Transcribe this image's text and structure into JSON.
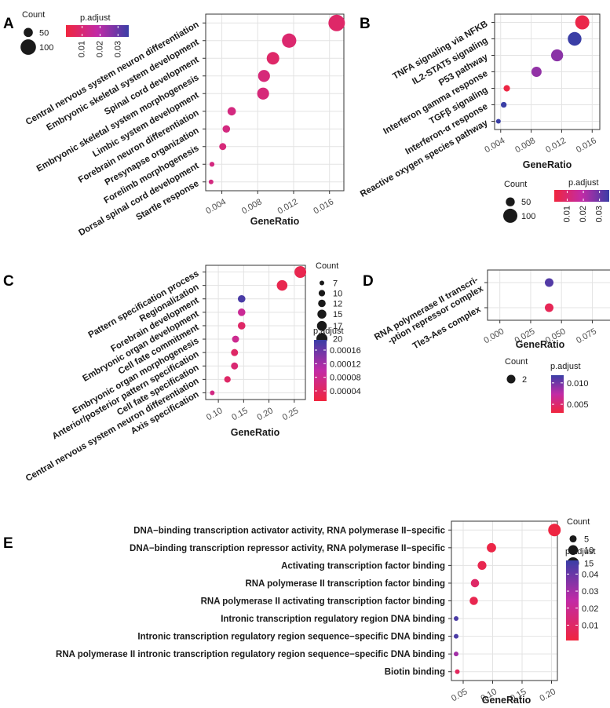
{
  "colors": {
    "low": "#f0263e",
    "mid": "#c22ba6",
    "high": "#3a3ea6",
    "dot_red": "#ee2b3e",
    "grid": "#e3e3e3",
    "frame": "#333333"
  },
  "chart_data": [
    {
      "panel": "A",
      "type": "scatter",
      "xlabel": "GeneRatio",
      "categories": [
        "Central nervous system neuron differentiation",
        "Embryonic skeletal system development",
        "Spinal cord development",
        "Embryonic skeletal system morphogenesis",
        "Limbic system development",
        "Forebrain neuron differentiation",
        "Presynapse organization",
        "Forelimb morphogenesis",
        "Dorsal spinal cord development",
        "Startle response"
      ],
      "x": [
        0.0168,
        0.0115,
        0.0097,
        0.0087,
        0.0086,
        0.0051,
        0.0045,
        0.0041,
        0.0029,
        0.0028
      ],
      "count": [
        110,
        90,
        75,
        70,
        70,
        45,
        40,
        37,
        26,
        25
      ],
      "p_adjust": [
        0.008,
        0.009,
        0.008,
        0.011,
        0.011,
        0.012,
        0.012,
        0.011,
        0.012,
        0.012
      ],
      "xlim": [
        0.0022,
        0.0176
      ],
      "xticks": [
        0.004,
        0.008,
        0.012,
        0.016
      ],
      "xtick_labels": [
        "0.004",
        "0.008",
        "0.012",
        "0.016"
      ],
      "size_legend": {
        "title": "Count",
        "values": [
          50,
          100
        ],
        "labels": [
          "50",
          "100"
        ]
      },
      "color_legend": {
        "title": "p.adjust",
        "range": [
          0.001,
          0.036
        ],
        "ticks": [
          0.01,
          0.02,
          0.03
        ],
        "labels": [
          "0.01",
          "0.02",
          "0.03"
        ],
        "orientation": "horizontal"
      }
    },
    {
      "panel": "B",
      "type": "scatter",
      "xlabel": "GeneRatio",
      "categories": [
        "TNFA signaling via NFKB",
        "IL2-STAT5 signaling",
        "P53 pathway",
        "Interferon gamma response",
        "TGFβ signaling",
        "Interferon-α response",
        "Reactive oxygen species pathway"
      ],
      "x": [
        0.0147,
        0.0137,
        0.0114,
        0.0087,
        0.0048,
        0.0044,
        0.0037
      ],
      "count": [
        100,
        95,
        78,
        60,
        32,
        28,
        22
      ],
      "p_adjust": [
        0.004,
        0.036,
        0.026,
        0.025,
        0.003,
        0.036,
        0.036
      ],
      "xlim": [
        0.0032,
        0.017
      ],
      "xticks": [
        0.004,
        0.008,
        0.012,
        0.016
      ],
      "xtick_labels": [
        "0.004",
        "0.008",
        "0.012",
        "0.016"
      ],
      "size_legend": {
        "title": "Count",
        "values": [
          50,
          100
        ],
        "labels": [
          "50",
          "100"
        ]
      },
      "color_legend": {
        "title": "p.adjust",
        "range": [
          0.002,
          0.036
        ],
        "ticks": [
          0.01,
          0.02,
          0.03
        ],
        "labels": [
          "0.01",
          "0.02",
          "0.03"
        ],
        "orientation": "horizontal"
      }
    },
    {
      "panel": "C",
      "type": "scatter",
      "xlabel": "GeneRatio",
      "categories": [
        "Pattern specification process",
        "Regionalization",
        "Forebrain development",
        "Embryonic organ development",
        "Cell fate commitment",
        "Embryonic organ morphogenesis",
        "Anterior/posterior pattern specification",
        "Cell fate specification",
        "Central nervous system neuron differentiation",
        "Axis specification"
      ],
      "x": [
        0.262,
        0.226,
        0.146,
        0.146,
        0.146,
        0.134,
        0.132,
        0.132,
        0.118,
        0.088
      ],
      "count": [
        22,
        19,
        12,
        12,
        12,
        11,
        11,
        11,
        10,
        7
      ],
      "p_adjust": [
        2.5e-05,
        2.5e-05,
        0.00018,
        8.5e-05,
        4.5e-05,
        8e-05,
        4.5e-05,
        5.5e-05,
        4.5e-05,
        7e-05
      ],
      "xlim": [
        0.075,
        0.272
      ],
      "xticks": [
        0.1,
        0.15,
        0.2,
        0.25
      ],
      "xtick_labels": [
        "0.10",
        "0.15",
        "0.20",
        "0.25"
      ],
      "size_legend": {
        "title": "Count",
        "values": [
          7,
          10,
          12,
          15,
          17,
          20
        ],
        "labels": [
          "7",
          "10",
          "12",
          "15",
          "17",
          "20"
        ]
      },
      "color_legend": {
        "title": "p.adjust",
        "range": [
          1e-05,
          0.00019
        ],
        "ticks": [
          4e-05,
          8e-05,
          0.00012,
          0.00016
        ],
        "labels": [
          "0.00004",
          "0.00008",
          "0.00012",
          "0.00016"
        ],
        "orientation": "vertical"
      }
    },
    {
      "panel": "D",
      "type": "scatter",
      "xlabel": "GeneRatio",
      "categories": [
        "RNA polymerase II transcri- -ption repressor complex",
        "Tle3-Aes complex"
      ],
      "category_lines": [
        [
          "RNA polymerase II transcri-",
          "-ption repressor complex"
        ],
        [
          "Tle3-Aes complex"
        ]
      ],
      "x": [
        0.04,
        0.04
      ],
      "count": [
        2,
        2
      ],
      "p_adjust": [
        0.011,
        0.004
      ],
      "xlim": [
        -0.01,
        0.09
      ],
      "xticks": [
        0.0,
        0.025,
        0.05,
        0.075
      ],
      "xtick_labels": [
        "0.000",
        "0.025",
        "0.050",
        "0.075"
      ],
      "size_legend": {
        "title": "Count",
        "values": [
          2
        ],
        "labels": [
          "2"
        ]
      },
      "color_legend": {
        "title": "p.adjust",
        "range": [
          0.003,
          0.0118
        ],
        "ticks": [
          0.005,
          0.01
        ],
        "labels": [
          "0.005",
          "0.010"
        ],
        "orientation": "vertical"
      }
    },
    {
      "panel": "E",
      "type": "scatter",
      "xlabel": "GeneRatio",
      "categories": [
        "DNA−binding transcription activator activity, RNA polymerase II−specific",
        "DNA−binding transcription repressor activity, RNA polymerase II−specific",
        "Activating transcription factor binding",
        "RNA polymerase II transcription factor binding",
        "RNA polymerase II activating transcription factor binding",
        "Intronic transcription regulatory region DNA binding",
        "Intronic transcription regulatory region sequence−specific DNA binding",
        "RNA polymerase II intronic transcription regulatory region sequence−specific DNA binding",
        "Biotin binding"
      ],
      "x": [
        0.205,
        0.098,
        0.082,
        0.07,
        0.068,
        0.038,
        0.038,
        0.038,
        0.04
      ],
      "count": [
        17,
        9,
        8,
        7,
        7,
        2,
        2,
        2,
        2
      ],
      "p_adjust": [
        0.002,
        0.003,
        0.005,
        0.01,
        0.005,
        0.045,
        0.045,
        0.03,
        0.008
      ],
      "xlim": [
        0.03,
        0.21
      ],
      "xticks": [
        0.05,
        0.1,
        0.15,
        0.2
      ],
      "xtick_labels": [
        "0.05",
        "0.10",
        "0.15",
        "0.20"
      ],
      "size_legend": {
        "title": "Count",
        "values": [
          5,
          10,
          15
        ],
        "labels": [
          "5",
          "10",
          "15"
        ]
      },
      "color_legend": {
        "title": "p.adjust",
        "range": [
          0.001,
          0.048
        ],
        "ticks": [
          0.01,
          0.02,
          0.03,
          0.04
        ],
        "labels": [
          "0.01",
          "0.02",
          "0.03",
          "0.04"
        ],
        "orientation": "vertical"
      }
    }
  ]
}
